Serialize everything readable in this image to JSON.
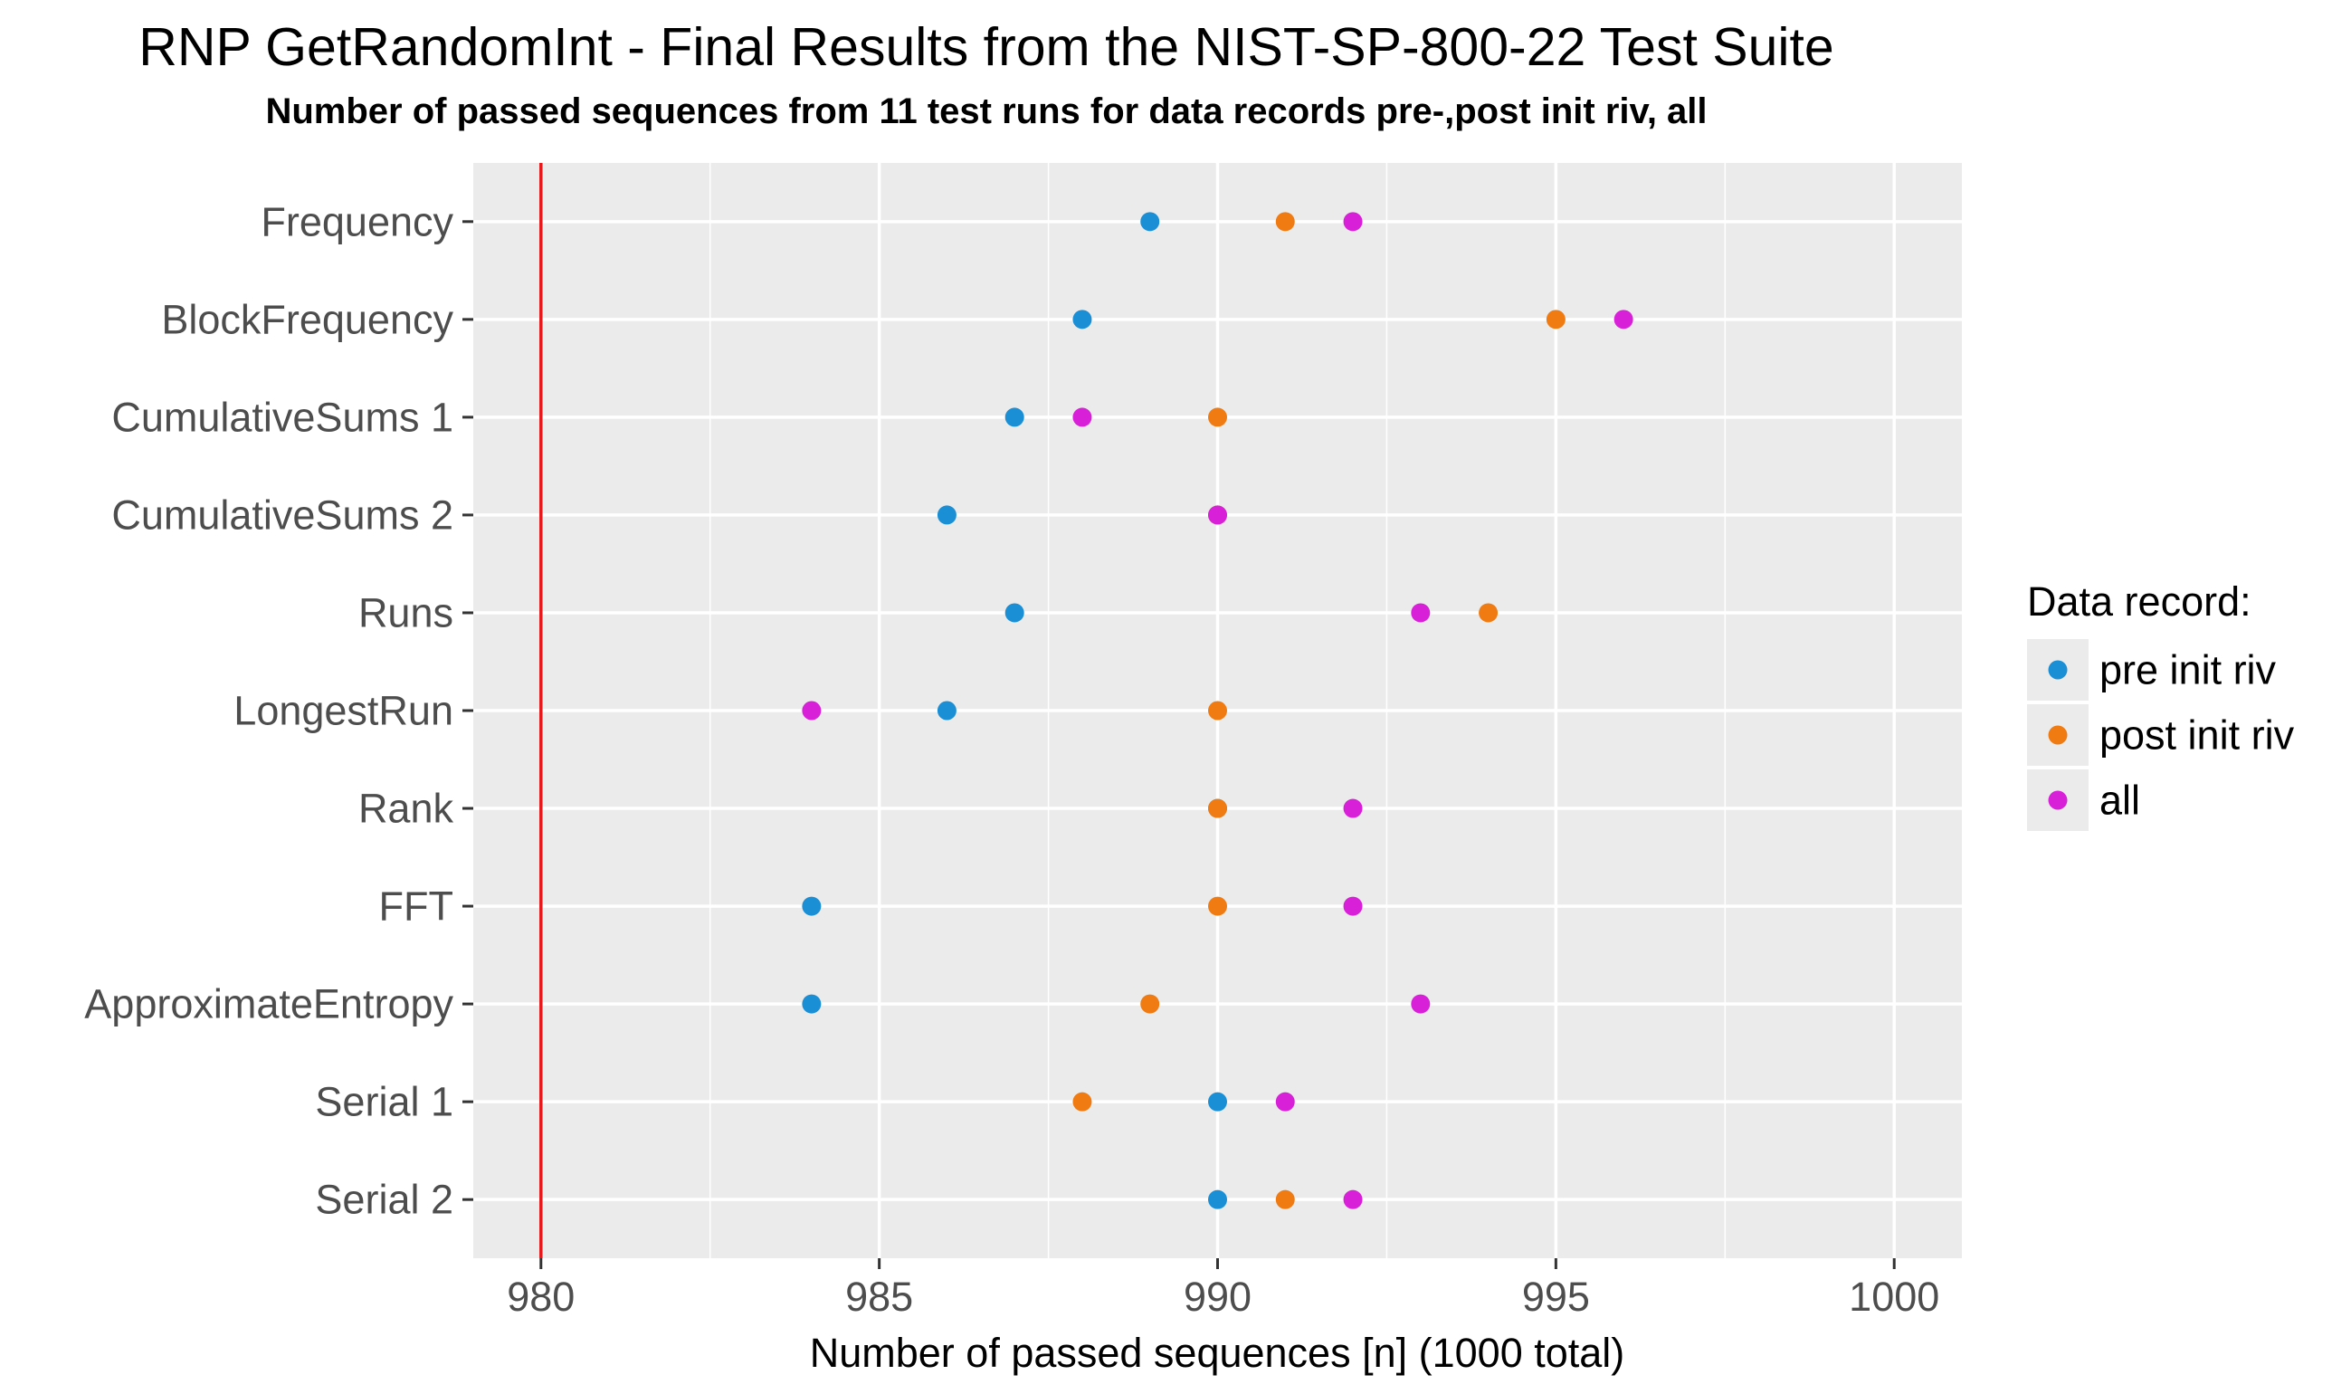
{
  "chart_data": {
    "type": "scatter",
    "title": "RNP GetRandomInt - Final Results from the NIST-SP-800-22 Test Suite",
    "subtitle": "Number of passed sequences from 11 test runs for data records pre-,post init riv, all",
    "xlabel": "Number of passed sequences [n] (1000 total)",
    "ylabel": "",
    "xlim": [
      979,
      1001
    ],
    "xticks": [
      980,
      985,
      990,
      995,
      1000
    ],
    "categories": [
      "Frequency",
      "BlockFrequency",
      "CumulativeSums 1",
      "CumulativeSums 2",
      "Runs",
      "LongestRun",
      "Rank",
      "FFT",
      "ApproximateEntropy",
      "Serial 1",
      "Serial 2"
    ],
    "reference_line": {
      "x": 980,
      "color": "#e41a1c"
    },
    "grid": true,
    "legend": {
      "title": "Data record:",
      "position": "right"
    },
    "series": [
      {
        "name": "pre init riv",
        "color": "#1a8fd6",
        "values": [
          989,
          988,
          987,
          986,
          987,
          986,
          990,
          984,
          984,
          990,
          990
        ]
      },
      {
        "name": "post init riv",
        "color": "#f07b12",
        "values": [
          991,
          995,
          990,
          990,
          994,
          990,
          990,
          990,
          989,
          988,
          991
        ]
      },
      {
        "name": "all",
        "color": "#d920d9",
        "values": [
          992,
          996,
          988,
          990,
          993,
          984,
          992,
          992,
          993,
          991,
          992
        ]
      }
    ]
  }
}
